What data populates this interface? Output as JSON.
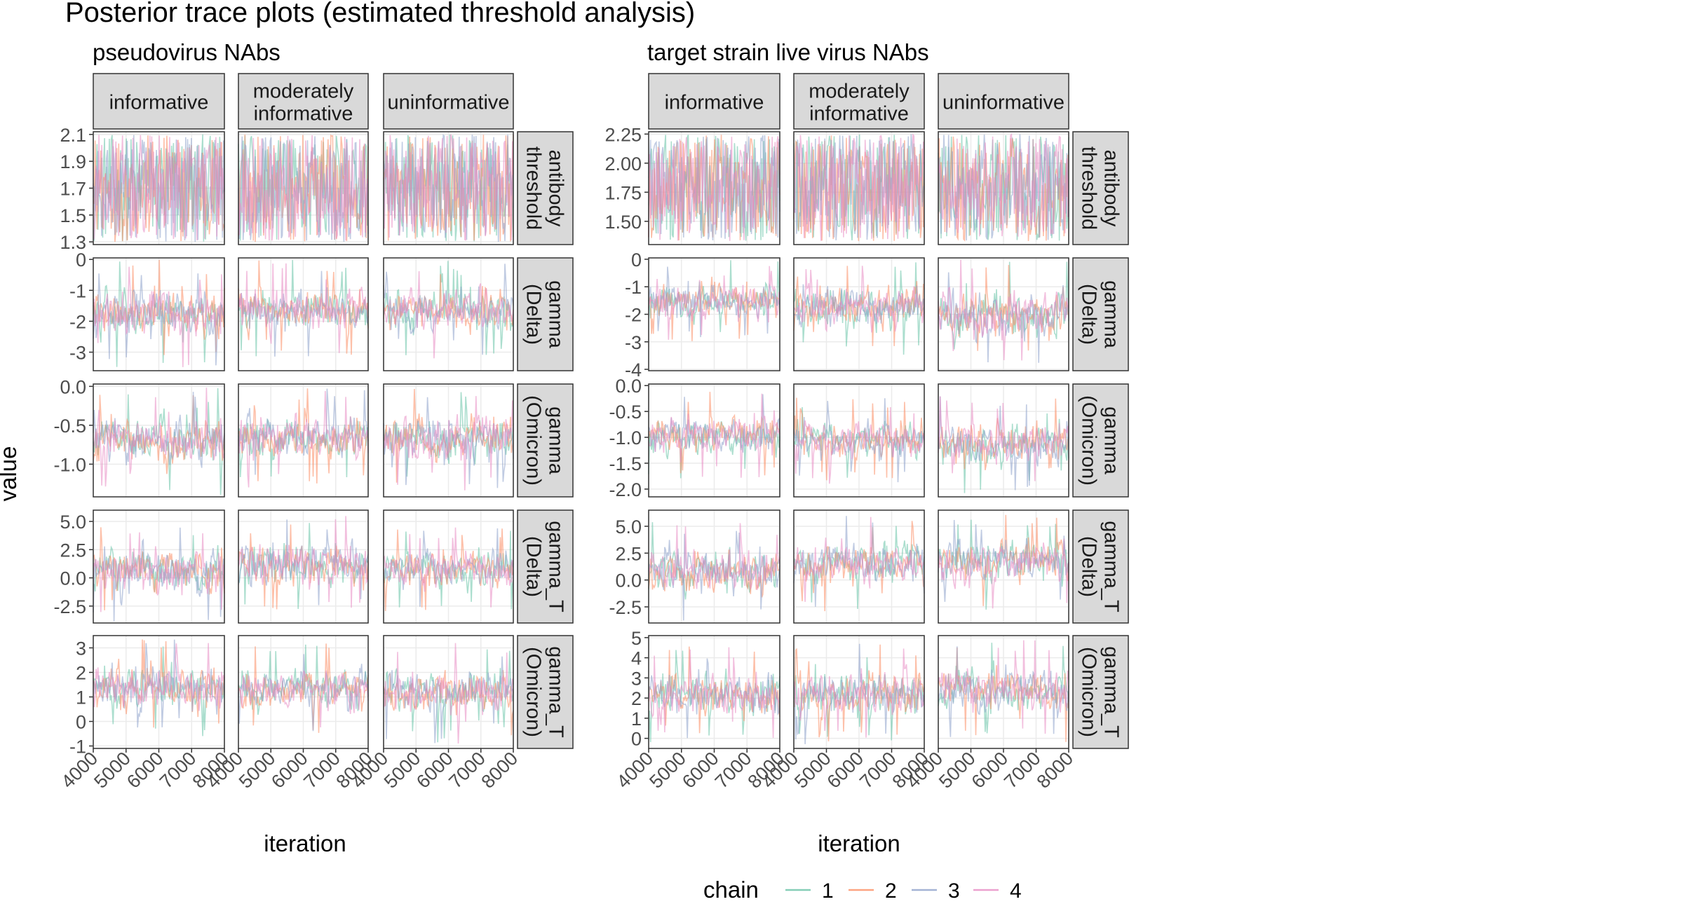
{
  "title": "Posterior trace plots (estimated threshold analysis)",
  "y_axis_label": "value",
  "panels": [
    {
      "title": "pseudovirus NAbs",
      "xlabel": "iteration"
    },
    {
      "title": "target strain live virus NAbs",
      "xlabel": "iteration"
    }
  ],
  "facet_columns": [
    {
      "label": "informative",
      "lines": [
        "informative"
      ]
    },
    {
      "label": "moderately informative",
      "lines": [
        "moderately",
        "informative"
      ]
    },
    {
      "label": "uninformative",
      "lines": [
        "uninformative"
      ]
    }
  ],
  "facet_rows": [
    {
      "label": "antibody threshold",
      "lines": [
        "antibody",
        "threshold"
      ]
    },
    {
      "label": "gamma (Delta)",
      "lines": [
        "gamma",
        "(Delta)"
      ]
    },
    {
      "label": "gamma (Omicron)",
      "lines": [
        "gamma",
        "(Omicron)"
      ]
    },
    {
      "label": "gamma_T (Delta)",
      "lines": [
        "gamma_T",
        "(Delta)"
      ]
    },
    {
      "label": "gamma_T (Omicron)",
      "lines": [
        "gamma_T",
        "(Omicron)"
      ]
    }
  ],
  "legend": {
    "title": "chain",
    "entries": [
      {
        "label": "1",
        "color": "#66C2A5"
      },
      {
        "label": "2",
        "color": "#FC8D62"
      },
      {
        "label": "3",
        "color": "#8DA0CB"
      },
      {
        "label": "4",
        "color": "#E78AC3"
      }
    ]
  },
  "colors": {
    "strip_fill": "#D9D9D9",
    "grid": "#EBEBEB",
    "tick_text": "#4D4D4D"
  },
  "chart_data": [
    {
      "type": "line",
      "title": "pseudovirus NAbs",
      "xlabel": "iteration",
      "ylabel": "value",
      "xlim": [
        4000,
        8000
      ],
      "x_ticks": [
        4000,
        5000,
        6000,
        7000,
        8000
      ],
      "series_names": [
        "1",
        "2",
        "3",
        "4"
      ],
      "rows": [
        {
          "param": "antibody threshold",
          "ylim": [
            1.28,
            2.12
          ],
          "y_ticks": [
            1.3,
            1.5,
            1.7,
            1.9,
            2.1
          ],
          "y_tick_labels": [
            "1.3",
            "1.5",
            "1.7",
            "1.9",
            "2.1"
          ],
          "approx_range_by_column": {
            "informative": [
              1.3,
              2.1
            ],
            "moderately informative": [
              1.3,
              2.1
            ],
            "uninformative": [
              1.3,
              2.1
            ]
          }
        },
        {
          "param": "gamma (Delta)",
          "ylim": [
            -3.6,
            0.05
          ],
          "y_ticks": [
            -3,
            -2,
            -1,
            0
          ],
          "y_tick_labels": [
            "-3",
            "-2",
            "-1",
            "0"
          ],
          "approx_range_by_column": {
            "informative": [
              -3.5,
              0
            ],
            "moderately informative": [
              -3.2,
              0
            ],
            "uninformative": [
              -3.3,
              0
            ]
          }
        },
        {
          "param": "gamma (Omicron)",
          "ylim": [
            -1.42,
            0.03
          ],
          "y_ticks": [
            -1.0,
            -0.5,
            0.0
          ],
          "y_tick_labels": [
            "-1.0",
            "-0.5",
            "0.0"
          ],
          "approx_range_by_column": {
            "informative": [
              -1.4,
              0
            ],
            "moderately informative": [
              -1.3,
              0
            ],
            "uninformative": [
              -1.35,
              0
            ]
          }
        },
        {
          "param": "gamma_T (Delta)",
          "ylim": [
            -4.0,
            6.0
          ],
          "y_ticks": [
            -2.5,
            0.0,
            2.5,
            5.0
          ],
          "y_tick_labels": [
            "-2.5",
            "0.0",
            "2.5",
            "5.0"
          ],
          "approx_range_by_column": {
            "informative": [
              -3.9,
              5.0
            ],
            "moderately informative": [
              -3.0,
              5.5
            ],
            "uninformative": [
              -3.0,
              4.5
            ]
          }
        },
        {
          "param": "gamma_T (Omicron)",
          "ylim": [
            -1.1,
            3.5
          ],
          "y_ticks": [
            -1,
            0,
            1,
            2,
            3
          ],
          "y_tick_labels": [
            "-1",
            "0",
            "1",
            "2",
            "3"
          ],
          "approx_range_by_column": {
            "informative": [
              -0.6,
              3.4
            ],
            "moderately informative": [
              -0.5,
              3.2
            ],
            "uninformative": [
              -0.9,
              3.2
            ]
          }
        }
      ]
    },
    {
      "type": "line",
      "title": "target strain live virus NAbs",
      "xlabel": "iteration",
      "ylabel": "value",
      "xlim": [
        4000,
        8000
      ],
      "x_ticks": [
        4000,
        5000,
        6000,
        7000,
        8000
      ],
      "series_names": [
        "1",
        "2",
        "3",
        "4"
      ],
      "rows": [
        {
          "param": "antibody threshold",
          "ylim": [
            1.3,
            2.27
          ],
          "y_ticks": [
            1.5,
            1.75,
            2.0,
            2.25
          ],
          "y_tick_labels": [
            "1.50",
            "1.75",
            "2.00",
            "2.25"
          ],
          "approx_range_by_column": {
            "informative": [
              1.33,
              2.25
            ],
            "moderately informative": [
              1.33,
              2.25
            ],
            "uninformative": [
              1.33,
              2.25
            ]
          }
        },
        {
          "param": "gamma (Delta)",
          "ylim": [
            -4.05,
            0.05
          ],
          "y_ticks": [
            -4,
            -3,
            -2,
            -1,
            0
          ],
          "y_tick_labels": [
            "-4",
            "-3",
            "-2",
            "-1",
            "0"
          ],
          "approx_range_by_column": {
            "informative": [
              -3.0,
              0
            ],
            "moderately informative": [
              -3.5,
              0
            ],
            "uninformative": [
              -4.0,
              0
            ]
          }
        },
        {
          "param": "gamma (Omicron)",
          "ylim": [
            -2.15,
            0.03
          ],
          "y_ticks": [
            -2.0,
            -1.5,
            -1.0,
            -0.5,
            0.0
          ],
          "y_tick_labels": [
            "-2.0",
            "-1.5",
            "-1.0",
            "-0.5",
            "0.0"
          ],
          "approx_range_by_column": {
            "informative": [
              -1.8,
              -0.1
            ],
            "moderately informative": [
              -1.9,
              -0.2
            ],
            "uninformative": [
              -2.1,
              -0.2
            ]
          }
        },
        {
          "param": "gamma_T (Delta)",
          "ylim": [
            -4.0,
            6.5
          ],
          "y_ticks": [
            -2.5,
            0.0,
            2.5,
            5.0
          ],
          "y_tick_labels": [
            "-2.5",
            "0.0",
            "2.5",
            "5.0"
          ],
          "approx_range_by_column": {
            "informative": [
              -3.8,
              5.5
            ],
            "moderately informative": [
              -3.0,
              6.0
            ],
            "uninformative": [
              -2.8,
              6.2
            ]
          }
        },
        {
          "param": "gamma_T (Omicron)",
          "ylim": [
            -0.5,
            5.1
          ],
          "y_ticks": [
            0,
            1,
            2,
            3,
            4,
            5
          ],
          "y_tick_labels": [
            "0",
            "1",
            "2",
            "3",
            "4",
            "5"
          ],
          "approx_range_by_column": {
            "informative": [
              -0.2,
              4.6
            ],
            "moderately informative": [
              -0.3,
              4.7
            ],
            "uninformative": [
              -0.2,
              4.9
            ]
          }
        }
      ]
    }
  ]
}
